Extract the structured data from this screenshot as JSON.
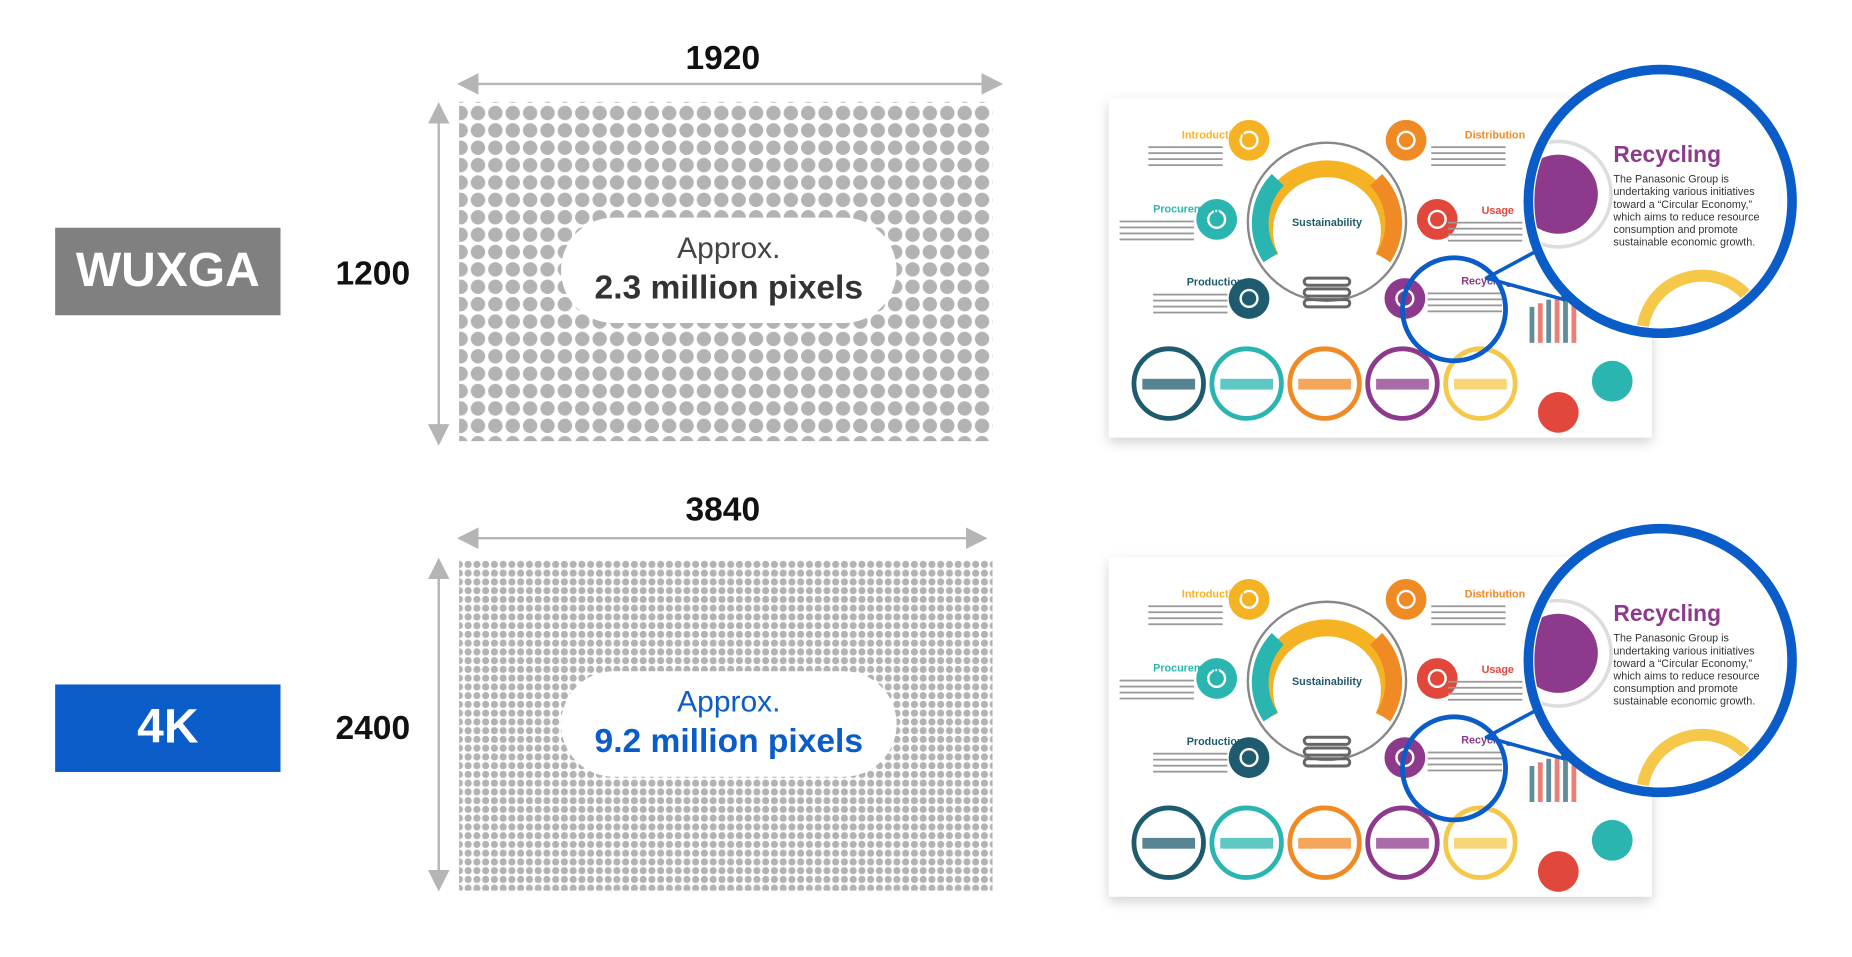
{
  "rows": [
    {
      "badge": "WUXGA",
      "width": 1920,
      "height": 1200,
      "approx": "Approx.",
      "pixels": "2.3 million pixels"
    },
    {
      "badge": "4K",
      "width": 3840,
      "height": 2400,
      "approx": "Approx.",
      "pixels": "9.2 million pixels"
    }
  ],
  "infographic": {
    "title": "Sustainability",
    "stages": [
      "Introduction",
      "Distribution",
      "Procurement",
      "Usage",
      "Production",
      "Recycling"
    ],
    "zoom": {
      "title": "Recycling",
      "body": [
        "The Panasonic Group is",
        "undertaking various initiatives",
        "toward a “Circular Economy,”",
        "which aims to reduce resource",
        "consumption and promote",
        "sustainable economic growth."
      ]
    }
  }
}
